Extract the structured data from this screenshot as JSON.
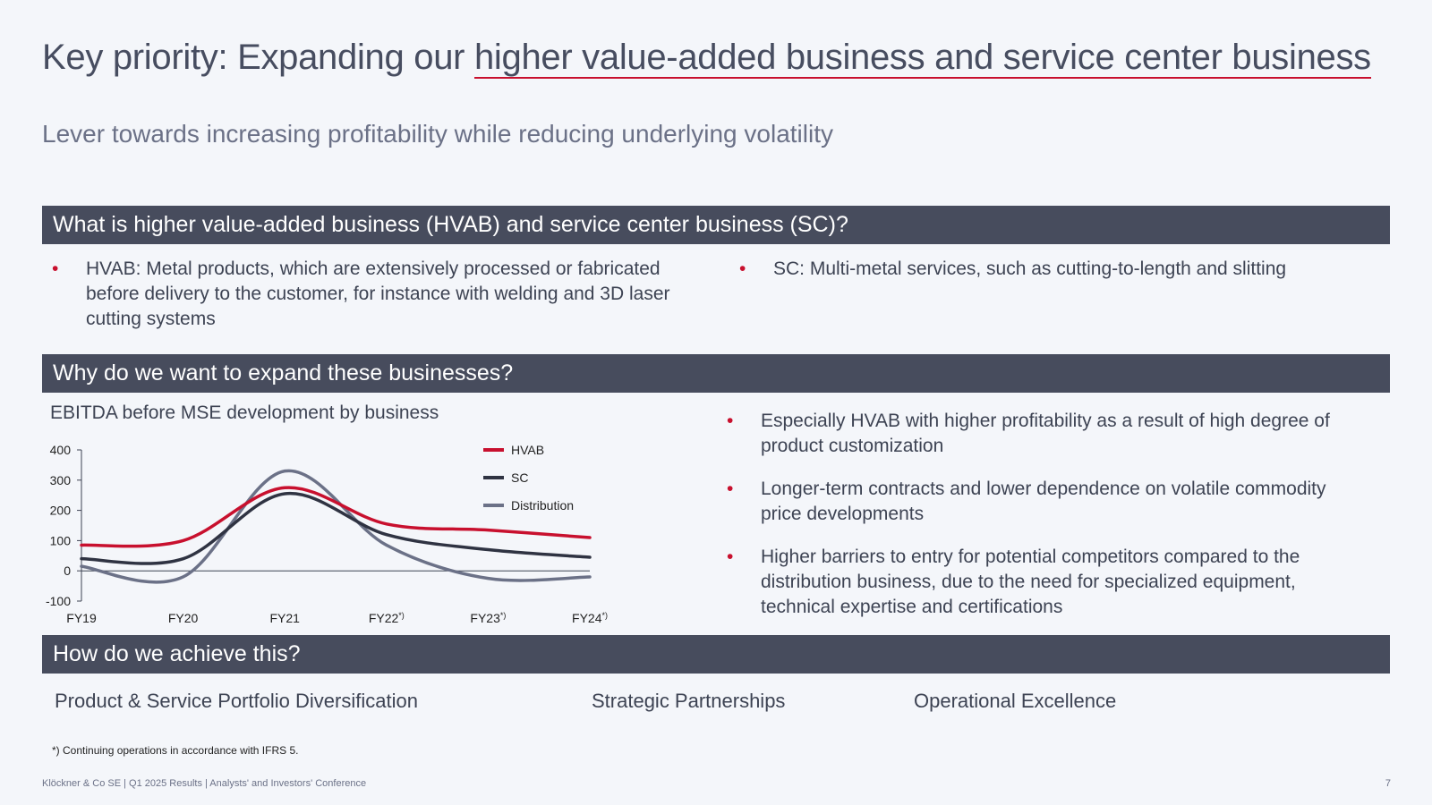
{
  "header": {
    "title_prefix": "Key priority: Expanding our ",
    "title_highlight": "higher value-added business and service center business",
    "subtitle": "Lever towards increasing profitability while reducing underlying volatility"
  },
  "section1": {
    "heading": "What is higher value-added business (HVAB) and service center business (SC)?",
    "bullets": [
      "HVAB: Metal products, which are extensively processed or fabricated before delivery to the customer, for instance with welding and 3D laser cutting systems",
      "SC: Multi-metal services, such as cutting-to-length and slitting"
    ]
  },
  "section2": {
    "heading": "Why do we want to expand these businesses?",
    "chart_title": "EBITDA before MSE development by business",
    "bullets": [
      "Especially HVAB with higher profitability as a result of high degree of product customization",
      "Longer-term contracts and lower dependence on volatile commodity price developments",
      "Higher barriers to entry for potential competitors compared to the distribution business, due to the need for specialized equipment, technical expertise and certifications"
    ]
  },
  "section3": {
    "heading": "How do we achieve this?",
    "items": [
      "Product & Service Portfolio Diversification",
      "Strategic Partnerships",
      "Operational Excellence"
    ]
  },
  "bullet_symbol": "•",
  "footnote": "*) Continuing operations in accordance with IFRS 5.",
  "footer": {
    "text": "Klöckner & Co SE | Q1 2025 Results | Analysts' and Investors' Conference",
    "page": "7"
  },
  "colors": {
    "accent": "#c8102e",
    "bar_bg": "#474c5d",
    "HVAB": "#c8102e",
    "SC": "#2f3342",
    "Distribution": "#6b7187"
  },
  "chart_data": {
    "type": "line",
    "categories": [
      "FY19",
      "FY20",
      "FY21",
      "FY22",
      "FY23",
      "FY24"
    ],
    "category_superscripts": [
      "",
      "",
      "",
      "*)",
      "*)",
      "*)"
    ],
    "ylim": [
      -100,
      400
    ],
    "yticks": [
      400,
      300,
      200,
      100,
      0,
      -100
    ],
    "series": [
      {
        "name": "HVAB",
        "values": [
          85,
          100,
          275,
          155,
          135,
          110
        ]
      },
      {
        "name": "SC",
        "values": [
          40,
          40,
          255,
          120,
          70,
          45
        ]
      },
      {
        "name": "Distribution",
        "values": [
          15,
          -20,
          330,
          85,
          -25,
          -20
        ]
      }
    ],
    "legend": "top-right",
    "grid": false
  }
}
